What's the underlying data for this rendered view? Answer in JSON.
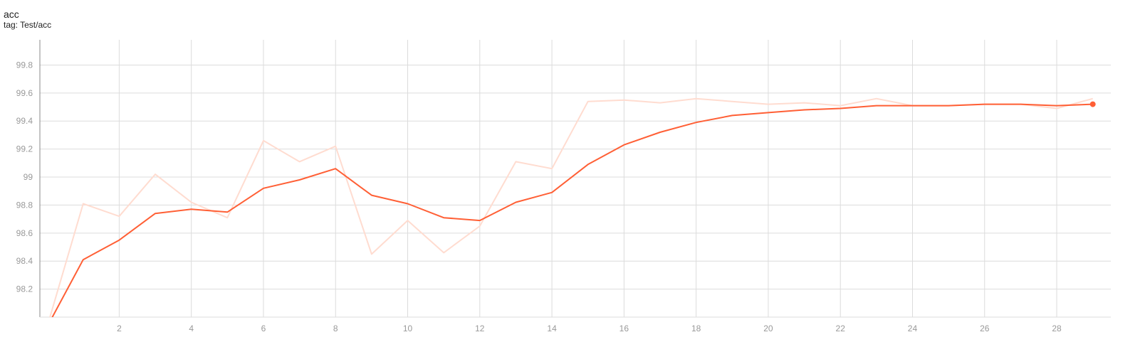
{
  "card": {
    "title": "acc",
    "tag": "tag: Test/acc"
  },
  "colors": {
    "smoothed_line": "#ff5f35",
    "raw_line": "#ffdcd0",
    "grid": "#dcdcdc",
    "axis": "#888888",
    "tick_text": "#999999"
  },
  "chart_data": {
    "type": "line",
    "title": "acc",
    "subtitle": "tag: Test/acc",
    "xlabel": "",
    "ylabel": "",
    "xlim": [
      -0.2,
      29.5
    ],
    "ylim": [
      98.0,
      99.98
    ],
    "x_ticks": [
      2,
      4,
      6,
      8,
      10,
      12,
      14,
      16,
      18,
      20,
      22,
      24,
      26,
      28
    ],
    "y_ticks": [
      98.2,
      98.4,
      98.6,
      98.8,
      99,
      99.2,
      99.4,
      99.6,
      99.8
    ],
    "grid": true,
    "x": [
      0,
      1,
      2,
      3,
      4,
      5,
      6,
      7,
      8,
      9,
      10,
      11,
      12,
      13,
      14,
      15,
      16,
      17,
      18,
      19,
      20,
      21,
      22,
      23,
      24,
      25,
      26,
      27,
      28,
      29
    ],
    "series": [
      {
        "role": "raw",
        "values": [
          97.93,
          98.81,
          98.72,
          99.02,
          98.82,
          98.71,
          99.26,
          99.11,
          99.22,
          98.45,
          98.69,
          98.46,
          98.65,
          99.11,
          99.06,
          99.54,
          99.55,
          99.53,
          99.56,
          99.54,
          99.52,
          99.53,
          99.51,
          99.56,
          99.51,
          99.51,
          99.52,
          99.52,
          99.49,
          99.56
        ]
      },
      {
        "role": "smoothed",
        "values": [
          97.93,
          98.41,
          98.55,
          98.74,
          98.77,
          98.75,
          98.92,
          98.98,
          99.06,
          98.87,
          98.81,
          98.71,
          98.69,
          98.82,
          98.89,
          99.09,
          99.23,
          99.32,
          99.39,
          99.44,
          99.46,
          99.48,
          99.49,
          99.51,
          99.51,
          99.51,
          99.52,
          99.52,
          99.51,
          99.52
        ]
      }
    ]
  }
}
